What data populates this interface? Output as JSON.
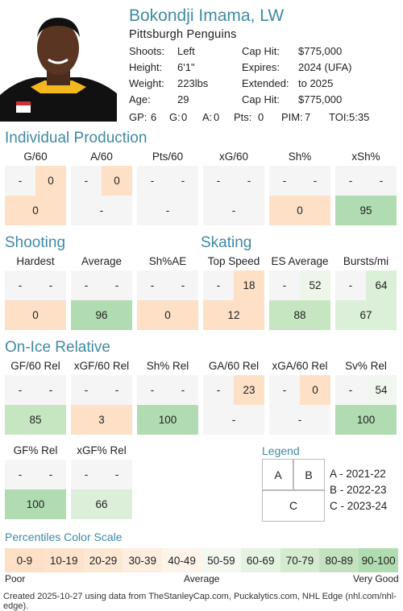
{
  "player": {
    "name": "Bokondji Imama, LW",
    "team": "Pittsburgh Penguins",
    "photo_icon": "player-headshot"
  },
  "info_left": [
    {
      "label": "Shoots:",
      "value": "Left"
    },
    {
      "label": "Height:",
      "value": "6'1\""
    },
    {
      "label": "Weight:",
      "value": "223lbs"
    },
    {
      "label": "Age:",
      "value": "29"
    }
  ],
  "info_right": [
    {
      "label": "Cap Hit:",
      "value": "$775,000"
    },
    {
      "label": "Expires:",
      "value": "2024 (UFA)"
    },
    {
      "label": "Extended:",
      "value": "to 2025"
    },
    {
      "label": "Cap Hit:",
      "value": "$775,000"
    }
  ],
  "stats_line": [
    {
      "label": "GP:",
      "value": "6"
    },
    {
      "label": "G:",
      "value": "0"
    },
    {
      "label": "A:",
      "value": "0"
    },
    {
      "label": "Pts:",
      "value": "0"
    },
    {
      "label": "PIM:",
      "value": "7"
    },
    {
      "label": "TOI:",
      "value": "5:35"
    }
  ],
  "sections": {
    "individual": "Individual Production",
    "shooting": "Shooting",
    "skating": "Skating",
    "onice": "On-Ice Relative"
  },
  "individual": [
    {
      "label": "G/60",
      "a": "-",
      "b": "0",
      "c": "0",
      "b_color": "#fde0c5",
      "c_color": "#fde0c5"
    },
    {
      "label": "A/60",
      "a": "-",
      "b": "0",
      "c": "-",
      "b_color": "#fde0c5",
      "c_color": "#f5f5f5"
    },
    {
      "label": "Pts/60",
      "a": "-",
      "b": "-",
      "c": "-",
      "b_color": "#f5f5f5",
      "c_color": "#f5f5f5"
    },
    {
      "label": "xG/60",
      "a": "-",
      "b": "-",
      "c": "-",
      "b_color": "#f5f5f5",
      "c_color": "#f5f5f5"
    },
    {
      "label": "Sh%",
      "a": "-",
      "b": "-",
      "c": "0",
      "b_color": "#f5f5f5",
      "c_color": "#fde0c5"
    },
    {
      "label": "xSh%",
      "a": "-",
      "b": "-",
      "c": "95",
      "b_color": "#f5f5f5",
      "c_color": "#b1dcb1"
    }
  ],
  "shooting_skating": [
    {
      "label": "Hardest",
      "a": "-",
      "b": "-",
      "c": "0",
      "b_color": "#f5f5f5",
      "c_color": "#fde0c5"
    },
    {
      "label": "Average",
      "a": "-",
      "b": "-",
      "c": "96",
      "b_color": "#f5f5f5",
      "c_color": "#b1dcb1"
    },
    {
      "label": "Sh%AE",
      "a": "-",
      "b": "-",
      "c": "0",
      "b_color": "#f5f5f5",
      "c_color": "#fde0c5"
    },
    {
      "label": "Top Speed",
      "a": "-",
      "b": "18",
      "c": "12",
      "b_color": "#fde0c5",
      "c_color": "#fde0c5"
    },
    {
      "label": "ES Average",
      "a": "-",
      "b": "52",
      "c": "88",
      "b_color": "#eef6ea",
      "c_color": "#c6e6c2"
    },
    {
      "label": "Bursts/mi",
      "a": "-",
      "b": "64",
      "c": "67",
      "b_color": "#dcefd8",
      "c_color": "#dcefd8"
    }
  ],
  "onice": [
    {
      "label": "GF/60 Rel",
      "a": "-",
      "b": "-",
      "c": "85",
      "b_color": "#f5f5f5",
      "c_color": "#c6e6c2"
    },
    {
      "label": "xGF/60 Rel",
      "a": "-",
      "b": "-",
      "c": "3",
      "b_color": "#f5f5f5",
      "c_color": "#fde0c5"
    },
    {
      "label": "Sh% Rel",
      "a": "-",
      "b": "-",
      "c": "100",
      "b_color": "#f5f5f5",
      "c_color": "#b1dcb1"
    },
    {
      "label": "GA/60 Rel",
      "a": "-",
      "b": "23",
      "c": "-",
      "b_color": "#fde0c5",
      "c_color": "#f5f5f5"
    },
    {
      "label": "xGA/60 Rel",
      "a": "-",
      "b": "0",
      "c": "-",
      "b_color": "#fde0c5",
      "c_color": "#f5f5f5"
    },
    {
      "label": "Sv% Rel",
      "a": "-",
      "b": "54",
      "c": "100",
      "b_color": "#f1f7ee",
      "c_color": "#b1dcb1"
    }
  ],
  "onice2": [
    {
      "label": "GF% Rel",
      "a": "-",
      "b": "-",
      "c": "100",
      "b_color": "#f5f5f5",
      "c_color": "#b1dcb1"
    },
    {
      "label": "xGF% Rel",
      "a": "-",
      "b": "-",
      "c": "66",
      "b_color": "#f5f5f5",
      "c_color": "#dcefd8"
    }
  ],
  "legend": {
    "title": "Legend",
    "a": "A",
    "b": "B",
    "c": "C",
    "items": [
      "A - 2021-22",
      "B - 2022-23",
      "C - 2023-24"
    ]
  },
  "scale": {
    "title": "Percentiles Color Scale",
    "buckets": [
      {
        "label": "0-9",
        "color": "#fde0c5"
      },
      {
        "label": "10-19",
        "color": "#fde3cb"
      },
      {
        "label": "20-29",
        "color": "#fde8d4"
      },
      {
        "label": "30-39",
        "color": "#feeedf"
      },
      {
        "label": "40-49",
        "color": "#fef4ea"
      },
      {
        "label": "50-59",
        "color": "#f3f9f0"
      },
      {
        "label": "60-69",
        "color": "#e5f3e1"
      },
      {
        "label": "70-79",
        "color": "#d4ebd0"
      },
      {
        "label": "80-89",
        "color": "#c2e3bd"
      },
      {
        "label": "90-100",
        "color": "#b1dcb1"
      }
    ],
    "poor": "Poor",
    "average": "Average",
    "very_good": "Very Good"
  },
  "footer": "Created 2025-10-27 using data from TheStanleyCap.com, Puckalytics.com, NHL Edge (nhl.com/nhl-edge)."
}
